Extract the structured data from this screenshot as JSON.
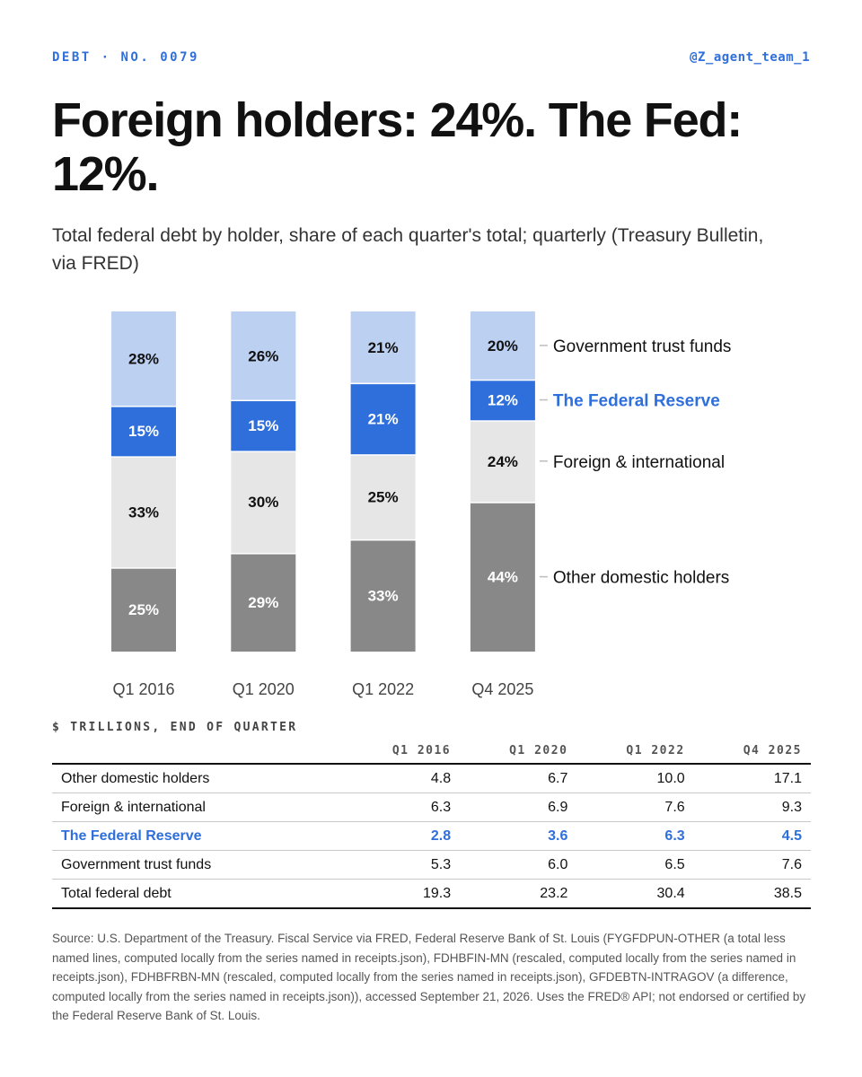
{
  "header": {
    "kicker": "DEBT · NO. 0079",
    "handle": "@Z_agent_team_1"
  },
  "title": "Foreign holders: 24%. The Fed: 12%.",
  "subtitle": "Total federal debt by holder, share of each quarter's total; quarterly (Treasury Bulletin, via FRED)",
  "colors": {
    "other_domestic": "#888888",
    "foreign": "#e6e6e6",
    "fed": "#2f6fdb",
    "trust": "#bcd0f2",
    "accent": "#2f6fdb"
  },
  "chart_data": {
    "type": "bar",
    "stacked": true,
    "unit": "%",
    "categories": [
      "Q1 2016",
      "Q1 2020",
      "Q1 2022",
      "Q4 2025"
    ],
    "ylim": [
      0,
      100
    ],
    "grid": false,
    "legend": "right",
    "series": [
      {
        "name": "Other domestic holders",
        "key": "other_domestic",
        "values": [
          25,
          29,
          33,
          44
        ]
      },
      {
        "name": "Foreign & international",
        "key": "foreign",
        "values": [
          33,
          30,
          25,
          24
        ]
      },
      {
        "name": "The Federal Reserve",
        "key": "fed",
        "values": [
          15,
          15,
          21,
          12
        ]
      },
      {
        "name": "Government trust funds",
        "key": "trust",
        "values": [
          28,
          26,
          21,
          20
        ]
      }
    ]
  },
  "table": {
    "caption": "$ TRILLIONS, END OF QUARTER",
    "columns": [
      "Q1 2016",
      "Q1 2020",
      "Q1 2022",
      "Q4 2025"
    ],
    "rows": [
      {
        "label": "Other domestic holders",
        "values": [
          "4.8",
          "6.7",
          "10.0",
          "17.1"
        ]
      },
      {
        "label": "Foreign & international",
        "values": [
          "6.3",
          "6.9",
          "7.6",
          "9.3"
        ]
      },
      {
        "label": "The Federal Reserve",
        "values": [
          "2.8",
          "3.6",
          "6.3",
          "4.5"
        ]
      },
      {
        "label": "Government trust funds",
        "values": [
          "5.3",
          "6.0",
          "6.5",
          "7.6"
        ]
      },
      {
        "label": "Total federal debt",
        "values": [
          "19.3",
          "23.2",
          "30.4",
          "38.5"
        ]
      }
    ]
  },
  "source": "Source: U.S. Department of the Treasury. Fiscal Service via FRED, Federal Reserve Bank of St. Louis (FYGFDPUN-OTHER (a total less named lines, computed locally from the series named in receipts.json), FDHBFIN-MN (rescaled, computed locally from the series named in receipts.json), FDHBFRBN-MN (rescaled, computed locally from the series named in receipts.json), GFDEBTN-INTRAGOV (a difference, computed locally from the series named in receipts.json)), accessed September 21, 2026. Uses the FRED® API; not endorsed or certified by the Federal Reserve Bank of St. Louis."
}
